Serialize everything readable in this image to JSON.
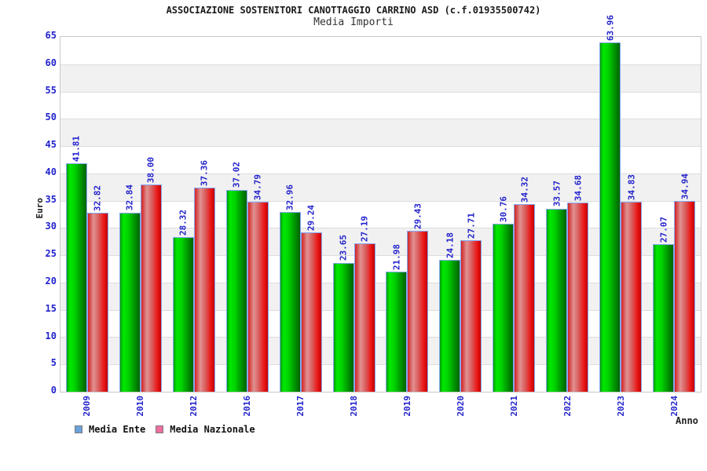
{
  "header": {
    "title": "ASSOCIAZIONE SOSTENITORI CANOTTAGGIO CARRINO ASD (c.f.01935500742)",
    "subtitle": "Media Importi"
  },
  "chart_data": {
    "type": "bar",
    "title": "ASSOCIAZIONE SOSTENITORI CANOTTAGGIO CARRINO ASD (c.f.01935500742)",
    "subtitle": "Media Importi",
    "xlabel": "Anno",
    "ylabel": "Euro",
    "ylim": [
      0,
      65
    ],
    "ytick_step": 5,
    "yticks": [
      0,
      5,
      10,
      15,
      20,
      25,
      30,
      35,
      40,
      45,
      50,
      55,
      60,
      65
    ],
    "categories": [
      "2009",
      "2010",
      "2012",
      "2016",
      "2017",
      "2018",
      "2019",
      "2020",
      "2021",
      "2022",
      "2023",
      "2024"
    ],
    "series": [
      {
        "name": "Media Ente",
        "values": [
          41.81,
          32.84,
          28.32,
          37.02,
          32.96,
          23.65,
          21.98,
          24.18,
          30.76,
          33.57,
          63.96,
          27.07
        ]
      },
      {
        "name": "Media Nazionale",
        "values": [
          32.82,
          38.0,
          37.36,
          34.79,
          29.24,
          27.19,
          29.43,
          27.71,
          34.32,
          34.68,
          34.83,
          34.94
        ]
      }
    ],
    "value_label_decimals": 2,
    "legend_position": "bottom-left",
    "grid": "horizontal-bands",
    "colors": {
      "tick_label": "#2222cc",
      "value_label": "#2222cc",
      "band_white": "#ffffff",
      "band_gray": "#f1f1f1",
      "gridline": "#dcdcdc",
      "plot_border": "#c9c9c9",
      "bar_outline": "#84a8f4",
      "bar_ente_main": "#00d400",
      "bar_nazionale_main": "#ec1414",
      "legend_ente_swatch": "#6aa2dc",
      "legend_nazionale_swatch": "#ee6e9e"
    }
  }
}
